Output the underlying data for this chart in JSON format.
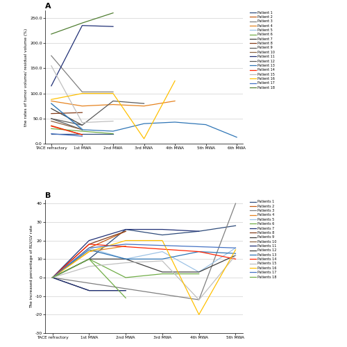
{
  "panel_A": {
    "title": "A",
    "xlabel_ticks": [
      "TACE refractory",
      "1st MWA",
      "2nd MWA",
      "3rd MWA",
      "4th MWA",
      "5th MWA",
      "6th MWA"
    ],
    "ylabel": "the rates of tumor volume/ residual volume (%)",
    "ylim": [
      0.0,
      265.0
    ],
    "yticks": [
      0.0,
      50.0,
      100.0,
      150.0,
      200.0,
      250.0
    ],
    "patients": {
      "Patient 1": [
        20,
        20,
        20,
        null,
        null,
        null,
        null
      ],
      "Patient 2": [
        36,
        18,
        null,
        null,
        null,
        null,
        null
      ],
      "Patient 3": [
        175,
        103,
        103,
        null,
        null,
        null,
        null
      ],
      "Patient 4": [
        85,
        75,
        78,
        75,
        85,
        null,
        null
      ],
      "Patient 5": [
        80,
        30,
        null,
        null,
        null,
        null,
        null
      ],
      "Patient 6": [
        30,
        25,
        20,
        null,
        null,
        null,
        null
      ],
      "Patient 7": [
        70,
        37,
        null,
        null,
        null,
        null,
        null
      ],
      "Patient 8": [
        60,
        62,
        null,
        null,
        null,
        null,
        null
      ],
      "Patient 9": [
        50,
        28,
        null,
        null,
        null,
        null,
        null
      ],
      "Patient 10": [
        45,
        28,
        null,
        null,
        null,
        null,
        null
      ],
      "Patient 11": [
        115,
        235,
        233,
        null,
        null,
        null,
        null
      ],
      "Patient 12": [
        50,
        37,
        85,
        80,
        null,
        null,
        null
      ],
      "Patient 13": [
        80,
        28,
        25,
        40,
        43,
        38,
        13
      ],
      "Patient 14": [
        35,
        18,
        null,
        null,
        null,
        null,
        null
      ],
      "Patient 15": [
        155,
        42,
        45,
        null,
        null,
        null,
        null
      ],
      "Patient 16": [
        88,
        100,
        100,
        10,
        125,
        null,
        null
      ],
      "Patient 17": [
        20,
        15,
        null,
        null,
        null,
        null,
        null
      ],
      "Patient 18": [
        218,
        240,
        260,
        null,
        null,
        null,
        null
      ]
    },
    "colors": {
      "Patient 1": "#2e4b7a",
      "Patient 2": "#c55a11",
      "Patient 3": "#7f7f7f",
      "Patient 4": "#e6821e",
      "Patient 5": "#9dc3e6",
      "Patient 6": "#70ad47",
      "Patient 7": "#3d3d3d",
      "Patient 8": "#843c18",
      "Patient 9": "#595959",
      "Patient 10": "#8b6242",
      "Patient 11": "#1f2f75",
      "Patient 12": "#595959",
      "Patient 13": "#2e75b6",
      "Patient 14": "#ff2200",
      "Patient 15": "#bfbfbf",
      "Patient 16": "#ffc000",
      "Patient 17": "#4472c4",
      "Patient 18": "#507e32"
    }
  },
  "panel_B": {
    "title": "B",
    "xlabel_ticks": [
      "TACE refractory",
      "1st MWA",
      "2nd MWA",
      "3rd MWA",
      "4th MWA",
      "5th MWA"
    ],
    "ylabel": "The increased percentage of RLV/LV rate",
    "ylim": [
      -30,
      42
    ],
    "yticks": [
      -30,
      -20,
      -10,
      0,
      10,
      20,
      30,
      40
    ],
    "patients": {
      "Patients 1": [
        0,
        10,
        26,
        23,
        25,
        28
      ],
      "Patients 2": [
        0,
        16,
        25,
        null,
        null,
        null
      ],
      "Patients 3": [
        0,
        null,
        null,
        null,
        -12,
        40
      ],
      "Patients 4": [
        0,
        14,
        17,
        null,
        null,
        null
      ],
      "Patients 5": [
        0,
        16,
        10,
        14,
        3,
        16
      ],
      "Patients 6": [
        0,
        10,
        0,
        2,
        2,
        null
      ],
      "Patients 7": [
        0,
        20,
        26,
        26,
        25,
        null
      ],
      "Patients 8": [
        0,
        18,
        25,
        null,
        null,
        null
      ],
      "Patients 9": [
        0,
        -7,
        -7,
        null,
        null,
        null
      ],
      "Patients 10": [
        0,
        null,
        null,
        null,
        null,
        null
      ],
      "Patients 11": [
        0,
        -7,
        -7,
        null,
        null,
        null
      ],
      "Patients 12": [
        0,
        10,
        10,
        3,
        3,
        12
      ],
      "Patients 13": [
        0,
        15,
        10,
        10,
        14,
        13
      ],
      "Patients 14": [
        0,
        18,
        null,
        null,
        14,
        10
      ],
      "Patients 15": [
        0,
        6,
        8,
        9,
        -12,
        12
      ],
      "Patients 16": [
        0,
        14,
        20,
        20,
        -20,
        15
      ],
      "Patients 17": [
        0,
        16,
        18,
        null,
        null,
        16
      ],
      "Patients 18": [
        0,
        10,
        -11,
        null,
        null,
        null
      ]
    },
    "colors": {
      "Patients 1": "#2e4b7a",
      "Patients 2": "#c55a11",
      "Patients 3": "#7f7f7f",
      "Patients 4": "#e6821e",
      "Patients 5": "#9dc3e6",
      "Patients 6": "#70ad47",
      "Patients 7": "#1f2f75",
      "Patients 8": "#843c18",
      "Patients 9": "#3d3d3d",
      "Patients 10": "#8b6242",
      "Patients 11": "#1f2f75",
      "Patients 12": "#3d3d3d",
      "Patients 13": "#2e75b6",
      "Patients 14": "#ff2200",
      "Patients 15": "#bfbfbf",
      "Patients 16": "#ffc000",
      "Patients 17": "#4472c4",
      "Patients 18": "#70ad47"
    }
  }
}
